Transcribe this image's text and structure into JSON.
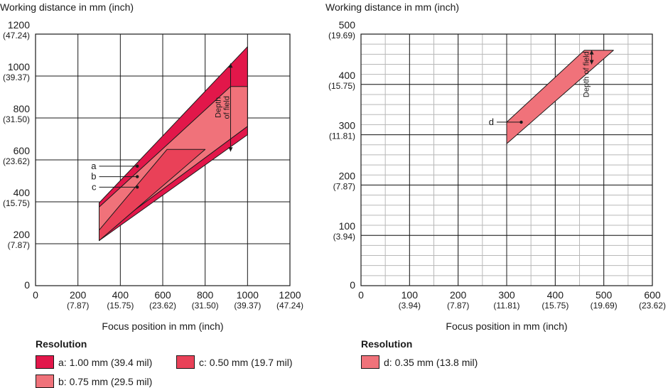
{
  "colors": {
    "a": "#e2174a",
    "b": "#f0727a",
    "c": "#e94158",
    "d": "#f0727a",
    "grid_major": "#1a1a1a",
    "grid_minor": "#b8b8b8"
  },
  "chart_data": [
    {
      "type": "area",
      "title": "",
      "ylabel": "Working distance in mm (inch)",
      "xlabel": "Focus position in mm (inch)",
      "xlim": [
        0,
        1200
      ],
      "ylim": [
        0,
        1200
      ],
      "x_ticks": [
        {
          "value": 0,
          "mm": "0",
          "inch": ""
        },
        {
          "value": 200,
          "mm": "200",
          "inch": "(7.87)"
        },
        {
          "value": 400,
          "mm": "400",
          "inch": "(15.75)"
        },
        {
          "value": 600,
          "mm": "600",
          "inch": "(23.62)"
        },
        {
          "value": 800,
          "mm": "800",
          "inch": "(31.50)"
        },
        {
          "value": 1000,
          "mm": "1000",
          "inch": "(39.37)"
        },
        {
          "value": 1200,
          "mm": "1200",
          "inch": "(47.24)"
        }
      ],
      "y_ticks": [
        {
          "value": 0,
          "mm": "0",
          "inch": ""
        },
        {
          "value": 200,
          "mm": "200",
          "inch": "(7.87)"
        },
        {
          "value": 400,
          "mm": "400",
          "inch": "(15.75)"
        },
        {
          "value": 600,
          "mm": "600",
          "inch": "(23.62)"
        },
        {
          "value": 800,
          "mm": "800",
          "inch": "(31.50)"
        },
        {
          "value": 1000,
          "mm": "1000",
          "inch": "(39.37)"
        },
        {
          "value": 1200,
          "mm": "1200",
          "inch": "(47.24)"
        }
      ],
      "series": [
        {
          "name": "a",
          "color_key": "a",
          "polygon": [
            [
              300,
              395
            ],
            [
              1000,
              1140
            ],
            [
              1000,
              720
            ],
            [
              300,
              215
            ]
          ]
        },
        {
          "name": "b",
          "color_key": "b",
          "polygon": [
            [
              300,
              375
            ],
            [
              920,
              950
            ],
            [
              1000,
              950
            ],
            [
              1000,
              760
            ],
            [
              300,
              235
            ]
          ]
        },
        {
          "name": "c",
          "color_key": "c",
          "polygon": [
            [
              300,
              265
            ],
            [
              620,
              650
            ],
            [
              800,
              650
            ],
            [
              300,
              215
            ]
          ]
        }
      ],
      "labels": [
        {
          "text": "a",
          "x": 480,
          "y": 570
        },
        {
          "text": "b",
          "x": 480,
          "y": 520
        },
        {
          "text": "c",
          "x": 480,
          "y": 470
        }
      ],
      "depth_of_field": {
        "text_line1": "Depth",
        "text_line2": "of field",
        "x": 920,
        "y_low": 640,
        "y_high": 1060
      },
      "x_grid_step": 200,
      "y_grid_step": 200
    },
    {
      "type": "area",
      "title": "",
      "ylabel": "Working distance in mm (inch)",
      "xlabel": "Focus position in mm (inch)",
      "xlim": [
        0,
        600
      ],
      "ylim": [
        0,
        500
      ],
      "x_ticks": [
        {
          "value": 0,
          "mm": "0",
          "inch": ""
        },
        {
          "value": 100,
          "mm": "100",
          "inch": "(3.94)"
        },
        {
          "value": 200,
          "mm": "200",
          "inch": "(7.87)"
        },
        {
          "value": 300,
          "mm": "300",
          "inch": "(11.81)"
        },
        {
          "value": 400,
          "mm": "400",
          "inch": "(15.75)"
        },
        {
          "value": 500,
          "mm": "500",
          "inch": "(19.69)"
        },
        {
          "value": 600,
          "mm": "600",
          "inch": "(23.62)"
        }
      ],
      "y_ticks": [
        {
          "value": 0,
          "mm": "0",
          "inch": ""
        },
        {
          "value": 100,
          "mm": "100",
          "inch": "(3.94)"
        },
        {
          "value": 200,
          "mm": "200",
          "inch": "(7.87)"
        },
        {
          "value": 300,
          "mm": "300",
          "inch": "(11.81)"
        },
        {
          "value": 400,
          "mm": "400",
          "inch": "(15.75)"
        },
        {
          "value": 500,
          "mm": "500",
          "inch": "(19.69)"
        }
      ],
      "series": [
        {
          "name": "d",
          "color_key": "d",
          "polygon": [
            [
              300,
              282
            ],
            [
              300,
              325
            ],
            [
              460,
              468
            ],
            [
              520,
              468
            ]
          ]
        }
      ],
      "labels": [
        {
          "text": "d",
          "x": 330,
          "y": 325
        }
      ],
      "depth_of_field": {
        "text_line1": "Depth of field",
        "text_line2": "",
        "x": 475,
        "y_low": 440,
        "y_high": 468
      },
      "x_grid_step": 100,
      "y_grid_step": 100,
      "minor_grid_step": 50
    }
  ],
  "legend_left": {
    "title": "Resolution",
    "items": [
      {
        "key": "a",
        "label": "a: 1.00 mm (39.4 mil)"
      },
      {
        "key": "b",
        "label": "b: 0.75 mm (29.5 mil)"
      },
      {
        "key": "c",
        "label": "c: 0.50 mm (19.7 mil)"
      }
    ]
  },
  "legend_right": {
    "title": "Resolution",
    "items": [
      {
        "key": "d",
        "label": "d: 0.35 mm (13.8 mil)"
      }
    ]
  }
}
